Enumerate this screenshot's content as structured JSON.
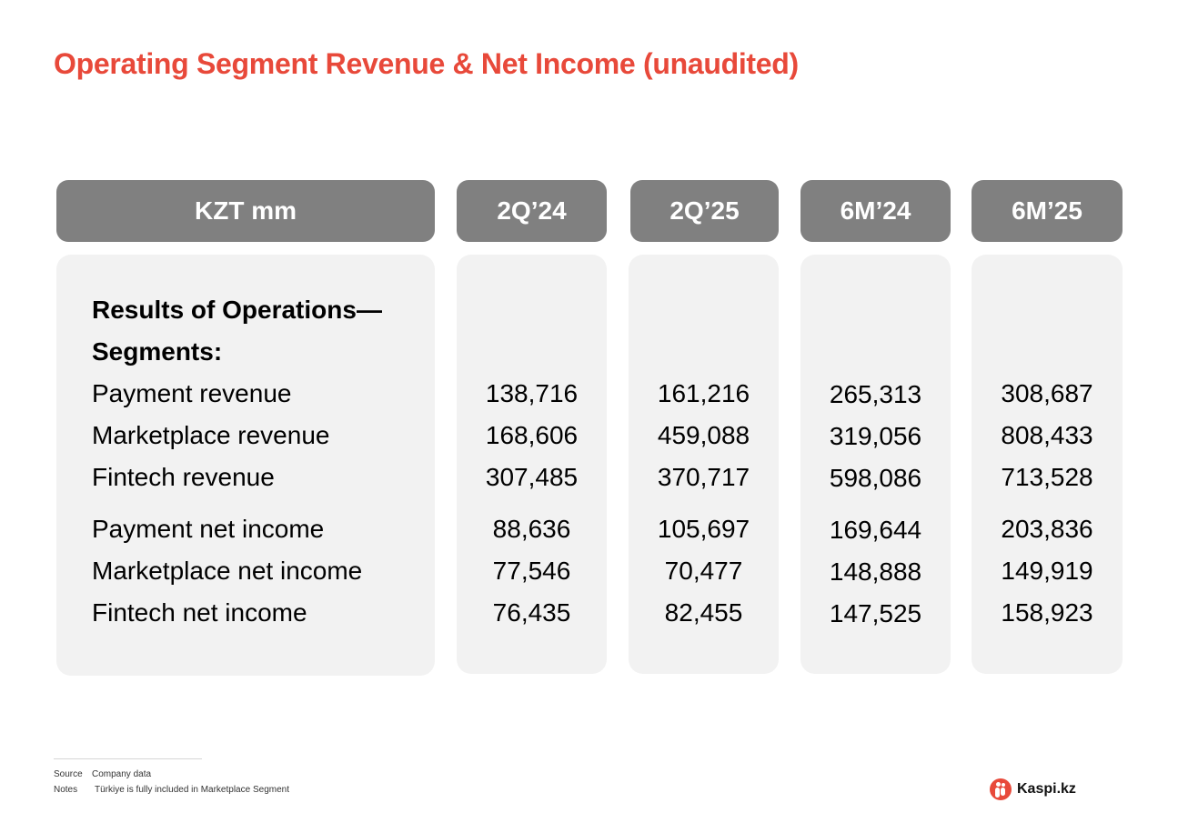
{
  "title": "Operating Segment Revenue & Net Income (unaudited)",
  "columns": [
    "KZT mm",
    "2Q’24",
    "2Q’25",
    "6M’24",
    "6M’25"
  ],
  "section_heading": [
    "Results of Operations—",
    "Segments:"
  ],
  "rows": [
    {
      "label": "Payment revenue",
      "values": [
        "138,716",
        "161,216",
        "265,313",
        "308,687"
      ]
    },
    {
      "label": "Marketplace revenue",
      "values": [
        "168,606",
        "459,088",
        "319,056",
        "808,433"
      ]
    },
    {
      "label": "Fintech revenue",
      "values": [
        "307,485",
        "370,717",
        "598,086",
        "713,528"
      ]
    },
    {
      "label": "Payment net income",
      "values": [
        "88,636",
        "105,697",
        "169,644",
        "203,836"
      ]
    },
    {
      "label": "Marketplace net income",
      "values": [
        "77,546",
        "70,477",
        "148,888",
        "149,919"
      ]
    },
    {
      "label": "Fintech net income",
      "values": [
        "76,435",
        "82,455",
        "147,525",
        "158,923"
      ]
    }
  ],
  "footer": {
    "source_label": "Source",
    "source_text": "Company data",
    "notes_label": "Notes",
    "notes_text": "Türkiye is fully included in Marketplace Segment"
  },
  "logo": {
    "text": "Kaspi.kz",
    "icon": "kaspi-logo-icon"
  },
  "colors": {
    "accent": "#e8493a",
    "header_bg": "#808080",
    "panel_bg": "#f2f2f2"
  }
}
